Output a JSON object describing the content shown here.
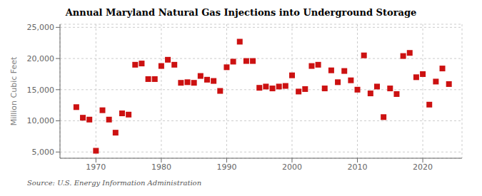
{
  "chart_data": {
    "type": "scatter",
    "title": "Annual Maryland Natural Gas Injections into Underground Storage",
    "ylabel": "Million Cubic Feet",
    "annotations": [
      "Source: U.S. Energy Information Administration"
    ],
    "color": "#cc1111",
    "marker": "square",
    "grid": true,
    "xlim": [
      1964.5,
      2026
    ],
    "ylim": [
      4000,
      25500
    ],
    "xticks": [
      1970,
      1980,
      1990,
      2000,
      2010,
      2020
    ],
    "yticks": [
      {
        "value": 5000,
        "label": "5,000"
      },
      {
        "value": 10000,
        "label": "10,000"
      },
      {
        "value": 15000,
        "label": "15,000"
      },
      {
        "value": 20000,
        "label": "20,000"
      },
      {
        "value": 25000,
        "label": "25,000"
      }
    ],
    "x": [
      1967,
      1968,
      1969,
      1970,
      1971,
      1972,
      1973,
      1974,
      1975,
      1976,
      1977,
      1978,
      1979,
      1980,
      1981,
      1982,
      1983,
      1984,
      1985,
      1986,
      1987,
      1988,
      1989,
      1990,
      1991,
      1992,
      1993,
      1994,
      1995,
      1996,
      1997,
      1998,
      1999,
      2000,
      2001,
      2002,
      2003,
      2004,
      2005,
      2006,
      2007,
      2008,
      2009,
      2010,
      2011,
      2012,
      2013,
      2014,
      2015,
      2016,
      2017,
      2018,
      2019,
      2020,
      2021,
      2022,
      2023,
      2024
    ],
    "values": [
      12200,
      10500,
      10200,
      5200,
      11700,
      10200,
      8100,
      11200,
      11000,
      19000,
      19200,
      16700,
      16700,
      18800,
      19800,
      19000,
      16100,
      16200,
      16100,
      17200,
      16600,
      16400,
      14800,
      18600,
      19500,
      22700,
      19600,
      19600,
      15300,
      15500,
      15200,
      15500,
      15600,
      17300,
      14700,
      15100,
      18800,
      19000,
      15200,
      18100,
      16200,
      18000,
      16500,
      15000,
      20500,
      14400,
      15500,
      10600,
      15200,
      14300,
      20400,
      20900,
      17000,
      17500,
      12600,
      16300,
      18400,
      15900
    ]
  }
}
